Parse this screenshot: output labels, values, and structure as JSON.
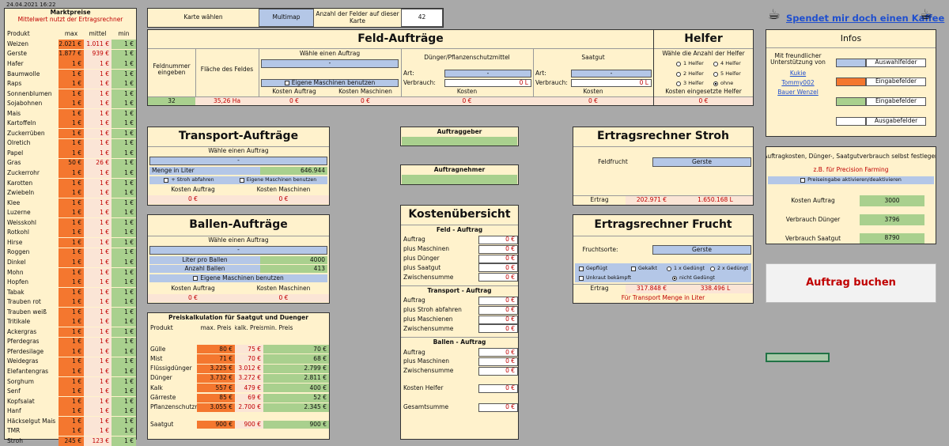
{
  "timestamp": "24.04.2021 16:22",
  "market": {
    "title": "Marktpreise",
    "subtitle": "Mittelwert nutzt der Ertragsrechner",
    "headers": [
      "Produkt",
      "max",
      "mittel",
      "min"
    ],
    "rows": [
      [
        "Weizen",
        "2.021 €",
        "1.011 €",
        "1 €"
      ],
      [
        "Gerste",
        "1.877 €",
        "939 €",
        "1 €"
      ],
      [
        "Hafer",
        "1 €",
        "1 €",
        "1 €"
      ],
      [
        "Baumwolle",
        "1 €",
        "1 €",
        "1 €"
      ],
      [
        "Raps",
        "1 €",
        "1 €",
        "1 €"
      ],
      [
        "Sonnenblumen",
        "1 €",
        "1 €",
        "1 €"
      ],
      [
        "Sojabohnen",
        "1 €",
        "1 €",
        "1 €"
      ],
      [
        "Mais",
        "1 €",
        "1 €",
        "1 €"
      ],
      [
        "Kartoffeln",
        "1 €",
        "1 €",
        "1 €"
      ],
      [
        "Zuckerrüben",
        "1 €",
        "1 €",
        "1 €"
      ],
      [
        "Ölretich",
        "1 €",
        "1 €",
        "1 €"
      ],
      [
        "Papel",
        "1 €",
        "1 €",
        "1 €"
      ],
      [
        "Gras",
        "50 €",
        "26 €",
        "1 €"
      ],
      [
        "Zuckerrohr",
        "1 €",
        "1 €",
        "1 €"
      ],
      [
        "Karotten",
        "1 €",
        "1 €",
        "1 €"
      ],
      [
        "Zwiebeln",
        "1 €",
        "1 €",
        "1 €"
      ],
      [
        "Klee",
        "1 €",
        "1 €",
        "1 €"
      ],
      [
        "Luzerne",
        "1 €",
        "1 €",
        "1 €"
      ],
      [
        "Weisskohl",
        "1 €",
        "1 €",
        "1 €"
      ],
      [
        "Rotkohl",
        "1 €",
        "1 €",
        "1 €"
      ],
      [
        "Hirse",
        "1 €",
        "1 €",
        "1 €"
      ],
      [
        "Roggen",
        "1 €",
        "1 €",
        "1 €"
      ],
      [
        "Dinkel",
        "1 €",
        "1 €",
        "1 €"
      ],
      [
        "Mohn",
        "1 €",
        "1 €",
        "1 €"
      ],
      [
        "Hopfen",
        "1 €",
        "1 €",
        "1 €"
      ],
      [
        "Tabak",
        "1 €",
        "1 €",
        "1 €"
      ],
      [
        "Trauben rot",
        "1 €",
        "1 €",
        "1 €"
      ],
      [
        "Trauben weiß",
        "1 €",
        "1 €",
        "1 €"
      ],
      [
        "Tritikale",
        "1 €",
        "1 €",
        "1 €"
      ],
      [
        "Ackergras",
        "1 €",
        "1 €",
        "1 €"
      ],
      [
        "Pferdegras",
        "1 €",
        "1 €",
        "1 €"
      ],
      [
        "Pferdesilage",
        "1 €",
        "1 €",
        "1 €"
      ],
      [
        "Weidegras",
        "1 €",
        "1 €",
        "1 €"
      ],
      [
        "Elefantengras",
        "1 €",
        "1 €",
        "1 €"
      ],
      [
        "Sorghum",
        "1 €",
        "1 €",
        "1 €"
      ],
      [
        "Senf",
        "1 €",
        "1 €",
        "1 €"
      ],
      [
        "Kopfsalat",
        "1 €",
        "1 €",
        "1 €"
      ],
      [
        "Hanf",
        "1 €",
        "1 €",
        "1 €"
      ],
      [
        "Häckselgut Mais",
        "1 €",
        "1 €",
        "1 €"
      ],
      [
        "TMR",
        "1 €",
        "1 €",
        "1 €"
      ],
      [
        "Stroh",
        "245 €",
        "123 €",
        "1 €"
      ]
    ]
  },
  "top": {
    "karte_label": "Karte wählen",
    "karte_value": "Multimap",
    "felder_label": "Anzahl der Felder auf dieser Karte",
    "felder_value": "42"
  },
  "feld": {
    "title": "Feld-Aufträge",
    "feldnummer_label": "Feldnummer eingeben",
    "flaeche_label": "Fläche des Feldes",
    "auftrag_label": "Wähle einen Auftrag",
    "auftrag_value": "-",
    "eigene": "Eigene Maschinen benutzen",
    "kosten_auftrag": "Kosten Auftrag",
    "kosten_maschinen": "Kosten Maschinen",
    "duenger_label": "Dünger/Pflanzenschutzmittel",
    "art": "Art:",
    "art_value": "-",
    "verbrauch": "Verbrauch:",
    "verbrauch_value": "0 L",
    "kosten": "Kosten",
    "saatgut_label": "Saatgut",
    "feldnummer_value": "32",
    "flaeche_value": "35,26 Ha",
    "euro0": "0 €"
  },
  "helfer": {
    "title": "Helfer",
    "label": "Wähle die Anzahl der Helfer",
    "opts": [
      "1 Helfer",
      "4 Helfer",
      "2 Helfer",
      "5 Helfer",
      "3 Helfer",
      "ohne"
    ],
    "kosten_label": "Kosten eingesetzte Helfer",
    "kosten_value": "0 €"
  },
  "coffee": {
    "link": "Spendet mir doch einen Kaffee",
    "icon_left": "coffee-icon",
    "icon_right": "coffee-icon"
  },
  "infos": {
    "title": "Infos",
    "thanks": "Mit freundlicher Unterstützung von",
    "names": [
      "Kukie",
      "Tommy002",
      "Bauer Wenzel"
    ],
    "legend": [
      "Auswahlfelder",
      "Eingabefelder",
      "Eingabefelder",
      "Ausgabefelder"
    ],
    "legend_colors": [
      "#b4c7e7",
      "#f4772f",
      "#a9d08e",
      "#ffffff"
    ]
  },
  "transport": {
    "title": "Transport-Aufträge",
    "auftrag_label": "Wähle einen Auftrag",
    "auftrag_value": "-",
    "menge_label": "Menge in Liter",
    "menge_value": "646.944",
    "stroh": "+ Stroh abfahren",
    "eigene": "Eigene Maschinen benutzen",
    "kosten_auftrag": "Kosten Auftrag",
    "kosten_maschinen": "Kosten Maschinen",
    "ka_value": "0 €",
    "km_value": "0 €"
  },
  "ballen": {
    "title": "Ballen-Aufträge",
    "auftrag_label": "Wähle einen Auftrag",
    "auftrag_value": "-",
    "liter_label": "Liter pro Ballen",
    "liter_value": "4000",
    "anzahl_label": "Anzahl Ballen",
    "anzahl_value": "413",
    "eigene": "Eigene Maschinen benutzen",
    "kosten_auftrag": "Kosten Auftrag",
    "kosten_maschinen": "Kosten Maschinen",
    "ka_value": "0 €",
    "km_value": "0 €"
  },
  "preis": {
    "title": "Preiskalkulation für Saatgut und Duenger",
    "headers": [
      "Produkt",
      "max. Preis",
      "kalk. Preis",
      "min. Preis"
    ],
    "rows": [
      [
        "Gülle",
        "80 €",
        "75 €",
        "70 €"
      ],
      [
        "Mist",
        "71 €",
        "70 €",
        "68 €"
      ],
      [
        "Flüssigdünger",
        "3.225 €",
        "3.012 €",
        "2.799 €"
      ],
      [
        "Dünger",
        "3.732 €",
        "3.272 €",
        "2.811 €"
      ],
      [
        "Kalk",
        "557 €",
        "479 €",
        "400 €"
      ],
      [
        "Gärreste",
        "85 €",
        "69 €",
        "52 €"
      ],
      [
        "Pflanzenschutzm",
        "3.055 €",
        "2.700 €",
        "2.345 €"
      ]
    ],
    "saatgut": [
      "Saatgut",
      "900 €",
      "900 €",
      "900 €"
    ]
  },
  "auftraggeber": {
    "label": "Auftraggeber",
    "nehmer_label": "Auftragnehmer"
  },
  "kosten": {
    "title": "Kostenübersicht",
    "feld_head": "Feld - Auftrag",
    "feld_rows": [
      "Auftrag",
      "plus Maschinen",
      "plus Dünger",
      "plus Saatgut",
      "Zwischensumme"
    ],
    "transport_head": "Transport - Auftrag",
    "transport_rows": [
      "Auftrag",
      "plus Stroh abfahren",
      "plus Maschienen",
      "Zwischensumme"
    ],
    "ballen_head": "Ballen - Auftrag",
    "ballen_rows": [
      "Auftrag",
      "plus Maschinen",
      "Zwischensumme"
    ],
    "helfer": "Kosten Helfer",
    "gesamt": "Gesamtsumme",
    "zero": "0 €"
  },
  "stroh": {
    "title": "Ertragsrechner Stroh",
    "feldfrucht_label": "Feldfrucht",
    "feldfrucht_value": "Gerste",
    "ertrag": "Ertrag",
    "ertrag_eur": "202.971 €",
    "ertrag_l": "1.650.168 L"
  },
  "frucht": {
    "title": "Ertragsrechner Frucht",
    "label": "Fruchtsorte:",
    "value": "Gerste",
    "opts": [
      "Gepflügt",
      "Gekalkt",
      "1 x Gedüngt",
      "2 x Gedüngt",
      "Unkraut bekämpft",
      "nicht Gedüngt"
    ],
    "ertrag": "Ertrag",
    "ertrag_eur": "317.848 €",
    "ertrag_l": "338.496 L",
    "note": "Für Transport Menge in Liter"
  },
  "auftrag_kosten": {
    "title": "Auftragkosten, Dünger-, Saatgutverbrauch selbst festlegen",
    "sub": "z.B. für Precision Farming",
    "toggle": "Preiseingabe aktivieren/deaktivieren",
    "rows": [
      [
        "Kosten Auftrag",
        "3000"
      ],
      [
        "Verbrauch Dünger",
        "3796"
      ],
      [
        "Verbrauch Saatgut",
        "8790"
      ]
    ]
  },
  "buchen": {
    "label": "Auftrag buchen"
  }
}
